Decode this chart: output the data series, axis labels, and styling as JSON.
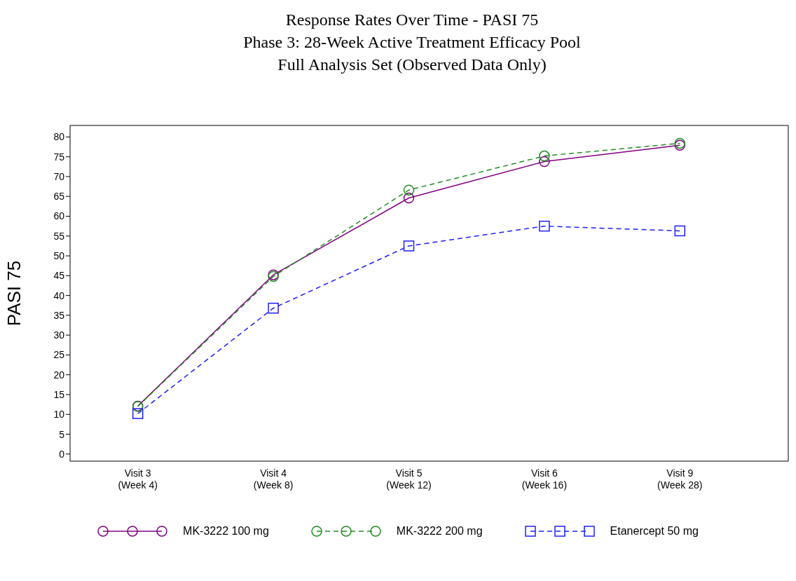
{
  "chart_data": {
    "type": "line",
    "title": "Response Rates Over Time - PASI 75",
    "subtitle": "Phase 3: 28-Week Active Treatment Efficacy Pool\nFull Analysis Set (Observed Data Only)",
    "ylabel": "PASI 75",
    "categories": [
      "Visit 3\n(Week 4)",
      "Visit 4\n(Week 8)",
      "Visit 5\n(Week 12)",
      "Visit 6\n(Week 16)",
      "Visit 9\n(Week 28)"
    ],
    "ylim": [
      -1.8,
      82.9
    ],
    "yticks": [
      0,
      5,
      10,
      15,
      20,
      25,
      30,
      35,
      40,
      45,
      50,
      55,
      60,
      65,
      70,
      75,
      80
    ],
    "grid": false,
    "legend": "bottom",
    "series": [
      {
        "name": "MK-3222 100 mg",
        "color": "#800080",
        "values": [
          12.1,
          45.2,
          64.6,
          73.8,
          77.9
        ],
        "marker": "circle",
        "line_style": "solid"
      },
      {
        "name": "MK-3222 200 mg",
        "color": "#228b22",
        "values": [
          12.0,
          44.8,
          66.6,
          75.2,
          78.4
        ],
        "marker": "circle",
        "line_style": "dashed"
      },
      {
        "name": "Etanercept 50 mg",
        "color": "#1f1fff",
        "values": [
          10.2,
          36.8,
          52.5,
          57.5,
          56.3
        ],
        "marker": "square",
        "line_style": "dashed"
      }
    ]
  }
}
